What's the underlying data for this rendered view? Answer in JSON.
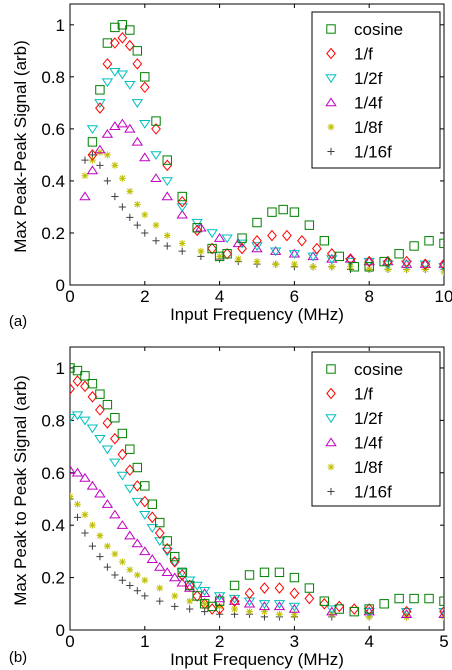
{
  "chart_data": [
    {
      "type": "scatter",
      "panel_label": "(a)",
      "xlabel": "Input Frequency (MHz)",
      "ylabel": "Max Peak-Peak Signal (arb)",
      "xlim": [
        0,
        10
      ],
      "ylim": [
        0,
        1.08
      ],
      "xticks": [
        0,
        2,
        4,
        6,
        8,
        10
      ],
      "yticks": [
        0,
        0.2,
        0.4,
        0.6,
        0.8,
        1
      ],
      "xtick_labels": [
        "0",
        "2",
        "4",
        "6",
        "8",
        "10"
      ],
      "ytick_labels": [
        "0",
        "0.2",
        "0.4",
        "0.6",
        "0.8",
        "1"
      ],
      "legend_position": "top-right",
      "grid": false,
      "series": [
        {
          "name": "cosine",
          "marker": "square",
          "color": "#008000",
          "x": [
            0.6,
            0.8,
            1.0,
            1.2,
            1.4,
            1.6,
            1.8,
            2.0,
            2.3,
            2.6,
            3.0,
            3.4,
            3.8,
            4.0,
            4.2,
            4.6,
            5.0,
            5.4,
            5.7,
            6.0,
            6.4,
            6.8,
            7.2,
            7.6,
            8.0,
            8.4,
            8.8,
            9.2,
            9.6,
            10.0
          ],
          "y": [
            0.55,
            0.75,
            0.93,
            0.99,
            1.0,
            0.98,
            0.9,
            0.8,
            0.63,
            0.48,
            0.34,
            0.22,
            0.14,
            0.11,
            0.12,
            0.18,
            0.24,
            0.28,
            0.29,
            0.28,
            0.23,
            0.17,
            0.11,
            0.07,
            0.07,
            0.09,
            0.12,
            0.15,
            0.17,
            0.16
          ]
        },
        {
          "name": "1/f",
          "marker": "diamond",
          "color": "#ff0000",
          "x": [
            0.6,
            0.8,
            1.0,
            1.2,
            1.4,
            1.6,
            1.8,
            2.0,
            2.3,
            2.6,
            3.0,
            3.4,
            3.8,
            4.2,
            4.6,
            5.0,
            5.4,
            5.8,
            6.2,
            6.6,
            7.0,
            7.5,
            8.0,
            8.5,
            9.0,
            9.5,
            10.0
          ],
          "y": [
            0.5,
            0.68,
            0.85,
            0.93,
            0.95,
            0.92,
            0.85,
            0.76,
            0.6,
            0.46,
            0.32,
            0.21,
            0.14,
            0.12,
            0.14,
            0.17,
            0.19,
            0.19,
            0.17,
            0.14,
            0.12,
            0.1,
            0.09,
            0.09,
            0.09,
            0.08,
            0.08
          ]
        },
        {
          "name": "1/2f",
          "marker": "triangle-down",
          "color": "#00bfbf",
          "x": [
            0.6,
            0.8,
            1.0,
            1.2,
            1.4,
            1.6,
            1.8,
            2.0,
            2.3,
            2.6,
            3.0,
            3.4,
            3.8,
            4.2,
            4.6,
            5.0,
            5.5,
            6.0,
            6.5,
            7.0,
            7.5,
            8.0,
            8.5,
            9.0,
            9.5,
            10.0
          ],
          "y": [
            0.6,
            0.7,
            0.78,
            0.82,
            0.81,
            0.77,
            0.7,
            0.62,
            0.5,
            0.4,
            0.3,
            0.24,
            0.2,
            0.18,
            0.16,
            0.15,
            0.13,
            0.12,
            0.11,
            0.1,
            0.09,
            0.09,
            0.08,
            0.08,
            0.08,
            0.07
          ]
        },
        {
          "name": "1/4f",
          "marker": "triangle-up",
          "color": "#bf00bf",
          "x": [
            0.4,
            0.6,
            0.8,
            1.0,
            1.2,
            1.4,
            1.6,
            1.8,
            2.0,
            2.3,
            2.6,
            3.0,
            3.5,
            4.0,
            4.5,
            5.0,
            5.5,
            6.0,
            6.5,
            7.0,
            7.5,
            8.0,
            8.5,
            9.0,
            9.5,
            10.0
          ],
          "y": [
            0.34,
            0.44,
            0.52,
            0.58,
            0.61,
            0.62,
            0.6,
            0.55,
            0.49,
            0.41,
            0.34,
            0.27,
            0.22,
            0.18,
            0.16,
            0.14,
            0.13,
            0.12,
            0.11,
            0.1,
            0.1,
            0.09,
            0.09,
            0.08,
            0.08,
            0.08
          ]
        },
        {
          "name": "1/8f",
          "marker": "asterisk",
          "color": "#bfbf00",
          "x": [
            0.4,
            0.6,
            0.8,
            1.0,
            1.2,
            1.4,
            1.6,
            1.8,
            2.0,
            2.3,
            2.6,
            3.0,
            3.5,
            4.0,
            4.5,
            5.0,
            5.5,
            6.0,
            6.5,
            7.0,
            7.5,
            8.0,
            8.5,
            9.0,
            9.5,
            10.0
          ],
          "y": [
            0.42,
            0.48,
            0.51,
            0.5,
            0.46,
            0.41,
            0.36,
            0.31,
            0.27,
            0.23,
            0.19,
            0.16,
            0.13,
            0.11,
            0.1,
            0.09,
            0.08,
            0.08,
            0.07,
            0.07,
            0.07,
            0.06,
            0.06,
            0.06,
            0.06,
            0.05
          ]
        },
        {
          "name": "1/16f",
          "marker": "plus",
          "color": "#404040",
          "x": [
            0.4,
            0.6,
            0.8,
            1.0,
            1.2,
            1.4,
            1.6,
            1.8,
            2.0,
            2.3,
            2.6,
            3.0,
            3.5,
            4.0,
            4.5,
            5.0,
            5.5,
            6.0,
            6.5,
            7.0,
            7.5,
            8.0,
            8.5,
            9.0,
            9.5,
            10.0
          ],
          "y": [
            0.48,
            0.5,
            0.46,
            0.4,
            0.34,
            0.3,
            0.26,
            0.23,
            0.2,
            0.17,
            0.15,
            0.13,
            0.11,
            0.1,
            0.09,
            0.08,
            0.08,
            0.07,
            0.07,
            0.07,
            0.06,
            0.06,
            0.06,
            0.06,
            0.06,
            0.06
          ]
        }
      ]
    },
    {
      "type": "scatter",
      "panel_label": "(b)",
      "xlabel": "Input Frequency (MHz)",
      "ylabel": "Max Peak to Peak Signal (arb)",
      "xlim": [
        0,
        5
      ],
      "ylim": [
        0,
        1.08
      ],
      "xticks": [
        0,
        1,
        2,
        3,
        4,
        5
      ],
      "yticks": [
        0,
        0.2,
        0.4,
        0.6,
        0.8,
        1
      ],
      "xtick_labels": [
        "0",
        "1",
        "2",
        "3",
        "4",
        "5"
      ],
      "ytick_labels": [
        "0",
        "0.2",
        "0.4",
        "0.6",
        "0.8",
        "1"
      ],
      "legend_position": "top-right",
      "grid": false,
      "series": [
        {
          "name": "cosine",
          "marker": "square",
          "color": "#008000",
          "x": [
            0.0,
            0.1,
            0.2,
            0.3,
            0.4,
            0.5,
            0.6,
            0.7,
            0.8,
            0.9,
            1.0,
            1.1,
            1.2,
            1.3,
            1.4,
            1.5,
            1.6,
            1.7,
            1.8,
            1.9,
            2.0,
            2.2,
            2.4,
            2.6,
            2.8,
            3.0,
            3.2,
            3.4,
            3.6,
            3.8,
            4.0,
            4.2,
            4.4,
            4.6,
            4.8,
            5.0
          ],
          "y": [
            1.0,
            0.99,
            0.97,
            0.94,
            0.9,
            0.86,
            0.81,
            0.75,
            0.69,
            0.62,
            0.55,
            0.48,
            0.41,
            0.34,
            0.28,
            0.22,
            0.17,
            0.13,
            0.1,
            0.09,
            0.11,
            0.17,
            0.21,
            0.22,
            0.22,
            0.2,
            0.16,
            0.11,
            0.08,
            0.07,
            0.08,
            0.1,
            0.12,
            0.12,
            0.12,
            0.11
          ]
        },
        {
          "name": "1/f",
          "marker": "diamond",
          "color": "#ff0000",
          "x": [
            0.0,
            0.1,
            0.2,
            0.3,
            0.4,
            0.5,
            0.6,
            0.7,
            0.8,
            0.9,
            1.0,
            1.1,
            1.2,
            1.3,
            1.4,
            1.5,
            1.6,
            1.7,
            1.8,
            1.9,
            2.0,
            2.2,
            2.4,
            2.6,
            2.8,
            3.0,
            3.2,
            3.4,
            3.6,
            3.8,
            4.0,
            4.5,
            5.0
          ],
          "y": [
            0.92,
            0.95,
            0.93,
            0.89,
            0.84,
            0.79,
            0.73,
            0.67,
            0.61,
            0.55,
            0.49,
            0.43,
            0.37,
            0.31,
            0.26,
            0.21,
            0.17,
            0.13,
            0.1,
            0.08,
            0.08,
            0.11,
            0.14,
            0.16,
            0.16,
            0.14,
            0.12,
            0.1,
            0.09,
            0.08,
            0.08,
            0.07,
            0.07
          ]
        },
        {
          "name": "1/2f",
          "marker": "triangle-down",
          "color": "#00bfbf",
          "x": [
            0.0,
            0.1,
            0.2,
            0.3,
            0.4,
            0.5,
            0.6,
            0.7,
            0.8,
            0.9,
            1.0,
            1.1,
            1.2,
            1.3,
            1.4,
            1.5,
            1.6,
            1.7,
            1.8,
            2.0,
            2.2,
            2.4,
            2.6,
            2.8,
            3.0,
            3.5,
            4.0,
            4.5,
            5.0
          ],
          "y": [
            0.81,
            0.82,
            0.8,
            0.77,
            0.73,
            0.69,
            0.64,
            0.59,
            0.54,
            0.49,
            0.44,
            0.39,
            0.34,
            0.3,
            0.26,
            0.22,
            0.19,
            0.17,
            0.15,
            0.13,
            0.12,
            0.11,
            0.1,
            0.1,
            0.09,
            0.08,
            0.07,
            0.07,
            0.07
          ]
        },
        {
          "name": "1/4f",
          "marker": "triangle-up",
          "color": "#bf00bf",
          "x": [
            0.0,
            0.1,
            0.2,
            0.3,
            0.4,
            0.5,
            0.6,
            0.7,
            0.8,
            0.9,
            1.0,
            1.1,
            1.2,
            1.3,
            1.4,
            1.5,
            1.6,
            1.8,
            2.0,
            2.2,
            2.4,
            2.6,
            2.8,
            3.0,
            3.5,
            4.0,
            4.5,
            5.0
          ],
          "y": [
            0.61,
            0.6,
            0.58,
            0.55,
            0.52,
            0.48,
            0.44,
            0.4,
            0.36,
            0.33,
            0.3,
            0.27,
            0.24,
            0.22,
            0.2,
            0.18,
            0.16,
            0.14,
            0.12,
            0.11,
            0.1,
            0.09,
            0.09,
            0.08,
            0.07,
            0.07,
            0.06,
            0.06
          ]
        },
        {
          "name": "1/8f",
          "marker": "asterisk",
          "color": "#bfbf00",
          "x": [
            0.0,
            0.1,
            0.2,
            0.3,
            0.4,
            0.5,
            0.6,
            0.7,
            0.8,
            0.9,
            1.0,
            1.2,
            1.4,
            1.6,
            1.8,
            2.0,
            2.2,
            2.4,
            2.6,
            2.8,
            3.0,
            3.5,
            4.0,
            4.5,
            5.0
          ],
          "y": [
            0.51,
            0.48,
            0.44,
            0.4,
            0.36,
            0.32,
            0.29,
            0.26,
            0.23,
            0.21,
            0.19,
            0.16,
            0.13,
            0.11,
            0.1,
            0.09,
            0.08,
            0.07,
            0.07,
            0.06,
            0.06,
            0.06,
            0.05,
            0.05,
            0.05
          ]
        },
        {
          "name": "1/16f",
          "marker": "plus",
          "color": "#404040",
          "x": [
            0.0,
            0.1,
            0.2,
            0.3,
            0.4,
            0.5,
            0.6,
            0.7,
            0.8,
            0.9,
            1.0,
            1.2,
            1.4,
            1.6,
            1.8,
            2.0,
            2.2,
            2.4,
            2.6,
            2.8,
            3.0,
            3.5,
            4.0,
            4.5,
            5.0
          ],
          "y": [
            0.5,
            0.43,
            0.37,
            0.32,
            0.28,
            0.24,
            0.21,
            0.19,
            0.17,
            0.15,
            0.13,
            0.11,
            0.09,
            0.08,
            0.07,
            0.06,
            0.06,
            0.06,
            0.05,
            0.05,
            0.05,
            0.05,
            0.05,
            0.05,
            0.05
          ]
        }
      ]
    }
  ]
}
